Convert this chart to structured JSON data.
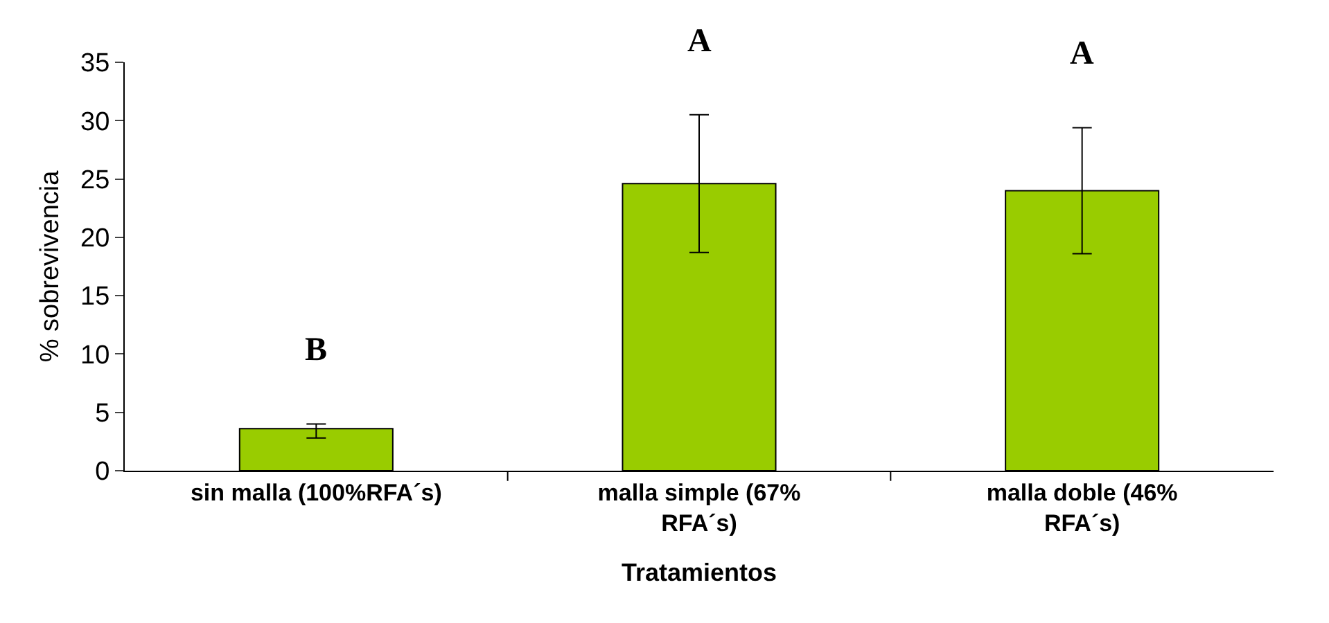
{
  "chart_data": {
    "type": "bar",
    "xlabel": "Tratamientos",
    "ylabel": "% sobrevivencia",
    "categories": [
      "sin malla (100%RFA´s)",
      "malla simple (67% RFA´s)",
      "malla doble (46% RFA´s)"
    ],
    "values": [
      3.6,
      24.6,
      24.0
    ],
    "color": "#99cc00",
    "errors": [
      [
        2.8,
        4.0
      ],
      [
        18.7,
        30.5
      ],
      [
        18.6,
        29.4
      ]
    ],
    "ylim": [
      0,
      35
    ],
    "yticks": [
      0,
      5,
      10,
      15,
      20,
      25,
      30,
      35
    ],
    "grid": false,
    "annotations": [
      "B",
      "A",
      "A"
    ]
  }
}
